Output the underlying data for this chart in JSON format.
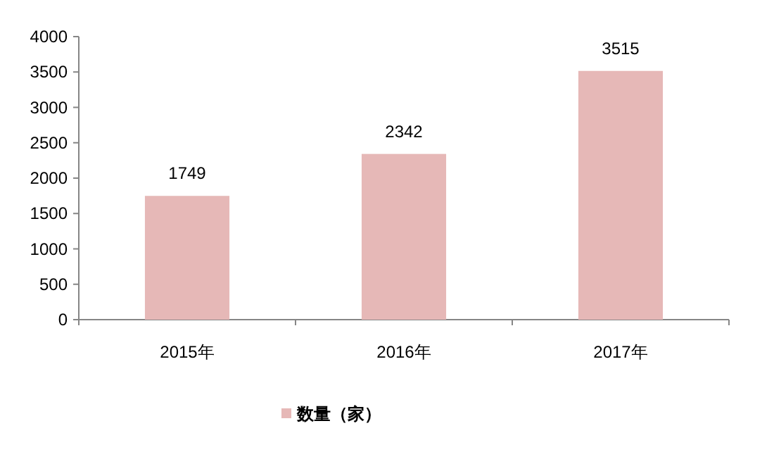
{
  "chart_data": {
    "type": "bar",
    "categories": [
      "2015年",
      "2016年",
      "2017年"
    ],
    "series": [
      {
        "name": "数量（家）",
        "color": "#e6b8b7",
        "values": [
          1749,
          2342,
          3515
        ]
      }
    ],
    "ylim": [
      0,
      4000
    ],
    "yticks": [
      0,
      500,
      1000,
      1500,
      2000,
      2500,
      3000,
      3500,
      4000
    ],
    "data_labels": true,
    "legend": "bottom"
  }
}
